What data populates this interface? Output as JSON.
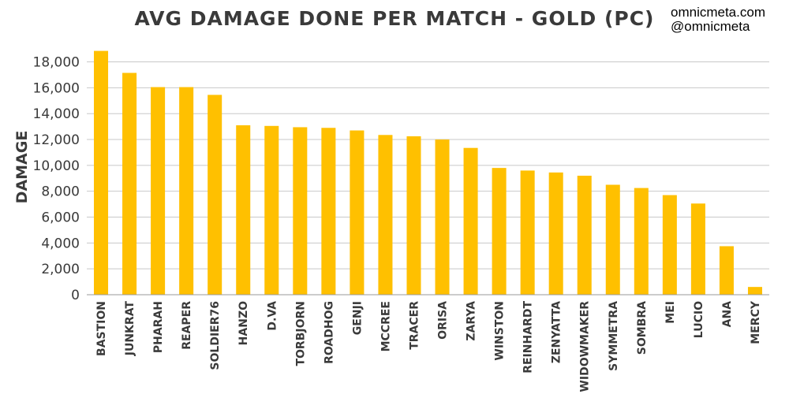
{
  "credits": {
    "line1": "omnicmeta.com",
    "line2": "@omnicmeta"
  },
  "colors": {
    "bar": "#FFC000",
    "text": "#3a3a3a",
    "grid": "#c8c8c8"
  },
  "chart_data": {
    "type": "bar",
    "title": "AVG DAMAGE DONE PER MATCH - GOLD (PC)",
    "xlabel": "",
    "ylabel": "DAMAGE",
    "ylim": [
      0,
      18000
    ],
    "yticks": [
      0,
      2000,
      4000,
      6000,
      8000,
      10000,
      12000,
      14000,
      16000,
      18000
    ],
    "ytick_labels": [
      "0",
      "2,000",
      "4,000",
      "6,000",
      "8,000",
      "10,000",
      "12,000",
      "14,000",
      "16,000",
      "18,000"
    ],
    "grid": true,
    "legend": "none",
    "categories": [
      "BASTION",
      "JUNKRAT",
      "PHARAH",
      "REAPER",
      "SOLDIER76",
      "HANZO",
      "D.VA",
      "TORBJORN",
      "ROADHOG",
      "GENJI",
      "MCCREE",
      "TRACER",
      "ORISA",
      "ZARYA",
      "WINSTON",
      "REINHARDT",
      "ZENYATTA",
      "WIDOWMAKER",
      "SYMMETRA",
      "SOMBRA",
      "MEI",
      "LUCIO",
      "ANA",
      "MERCY"
    ],
    "values": [
      18850,
      17150,
      16050,
      16050,
      15450,
      13100,
      13050,
      12950,
      12900,
      12700,
      12350,
      12250,
      12000,
      11350,
      9800,
      9600,
      9450,
      9200,
      8500,
      8250,
      7700,
      7050,
      3750,
      600
    ]
  }
}
